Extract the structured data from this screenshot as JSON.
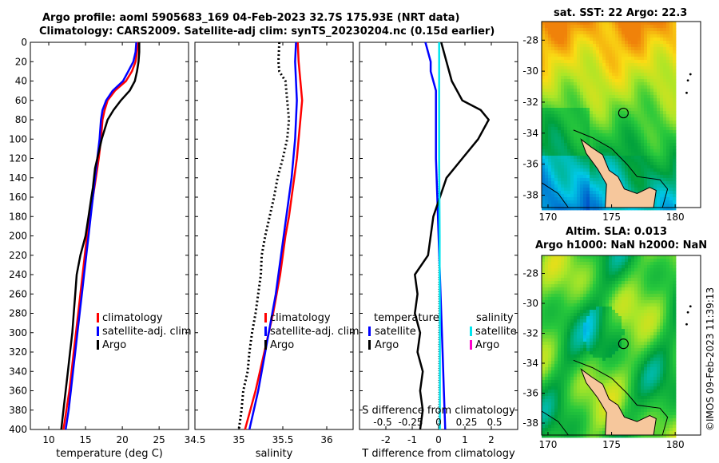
{
  "titles": {
    "line1": "Argo profile: aoml 5905683_169 04-Feb-2023 32.7S 175.93E (NRT data)",
    "line2": "Climatology: CARS2009. Satellite-adj clim: synTS_20230204.nc (0.15d earlier)",
    "map1": "sat. SST: 22 Argo: 22.3",
    "map2a": "Altim. SLA: 0.013",
    "map2b": "Argo h1000: NaN h2000: NaN"
  },
  "stamp": "©IMOS 09-Feb-2023 11:39:13",
  "colors": {
    "climatology": "#ff0000",
    "satellite": "#0000ff",
    "argo": "#000000",
    "sal_satellite": "#00e5ee",
    "sal_argo": "#ff00cc"
  },
  "chart_data": [
    {
      "type": "line",
      "id": "temperature",
      "xlabel": "temperature (deg C)",
      "xlim": [
        7.5,
        29
      ],
      "ylim": [
        0,
        400
      ],
      "yticks": [
        0,
        20,
        40,
        60,
        80,
        100,
        120,
        140,
        160,
        180,
        200,
        220,
        240,
        260,
        280,
        300,
        320,
        340,
        360,
        380,
        400
      ],
      "xticks": [
        10,
        15,
        20,
        25
      ],
      "tick_labels": [
        "10",
        "15",
        "20",
        "25"
      ],
      "legend": {
        "location": "lower-right",
        "labels": [
          "climatology",
          "satellite-adj. clim",
          "Argo"
        ]
      },
      "series": [
        {
          "name": "climatology",
          "color": "#ff0000",
          "points": [
            [
              22.1,
              0
            ],
            [
              22.0,
              10
            ],
            [
              21.8,
              20
            ],
            [
              21.3,
              30
            ],
            [
              20.5,
              40
            ],
            [
              19.0,
              50
            ],
            [
              18.0,
              60
            ],
            [
              17.6,
              70
            ],
            [
              17.3,
              80
            ],
            [
              17.1,
              100
            ],
            [
              16.8,
              120
            ],
            [
              16.4,
              140
            ],
            [
              16.0,
              160
            ],
            [
              15.6,
              180
            ],
            [
              15.2,
              200
            ],
            [
              14.9,
              220
            ],
            [
              14.6,
              240
            ],
            [
              14.3,
              260
            ],
            [
              14.0,
              280
            ],
            [
              13.7,
              300
            ],
            [
              13.4,
              320
            ],
            [
              13.1,
              340
            ],
            [
              12.8,
              360
            ],
            [
              12.4,
              380
            ],
            [
              12.0,
              400
            ]
          ]
        },
        {
          "name": "satellite-adj. clim",
          "color": "#0000ff",
          "points": [
            [
              21.9,
              0
            ],
            [
              21.8,
              10
            ],
            [
              21.5,
              20
            ],
            [
              20.8,
              30
            ],
            [
              20.1,
              40
            ],
            [
              18.7,
              50
            ],
            [
              17.8,
              60
            ],
            [
              17.3,
              70
            ],
            [
              17.1,
              80
            ],
            [
              16.9,
              100
            ],
            [
              16.6,
              120
            ],
            [
              16.3,
              140
            ],
            [
              16.0,
              160
            ],
            [
              15.7,
              180
            ],
            [
              15.4,
              200
            ],
            [
              15.1,
              220
            ],
            [
              14.8,
              240
            ],
            [
              14.5,
              260
            ],
            [
              14.2,
              280
            ],
            [
              13.9,
              300
            ],
            [
              13.6,
              320
            ],
            [
              13.3,
              340
            ],
            [
              13.0,
              360
            ],
            [
              12.7,
              380
            ],
            [
              12.3,
              400
            ]
          ]
        },
        {
          "name": "Argo",
          "color": "#000000",
          "points": [
            [
              22.3,
              0
            ],
            [
              22.3,
              10
            ],
            [
              22.2,
              20
            ],
            [
              22.0,
              30
            ],
            [
              21.7,
              40
            ],
            [
              21.0,
              50
            ],
            [
              19.8,
              60
            ],
            [
              18.8,
              70
            ],
            [
              18.0,
              80
            ],
            [
              17.6,
              90
            ],
            [
              17.2,
              100
            ],
            [
              16.9,
              110
            ],
            [
              16.6,
              120
            ],
            [
              16.3,
              130
            ],
            [
              16.0,
              150
            ],
            [
              15.8,
              160
            ],
            [
              15.4,
              180
            ],
            [
              15.0,
              200
            ],
            [
              14.3,
              220
            ],
            [
              13.8,
              240
            ],
            [
              13.6,
              260
            ],
            [
              13.4,
              280
            ],
            [
              13.2,
              300
            ],
            [
              12.9,
              320
            ],
            [
              12.6,
              340
            ],
            [
              12.3,
              360
            ],
            [
              12.0,
              380
            ],
            [
              11.7,
              400
            ]
          ]
        }
      ]
    },
    {
      "type": "line",
      "id": "salinity",
      "xlabel": "salinity",
      "xlim": [
        34.5,
        36.3
      ],
      "ylim": [
        0,
        400
      ],
      "xticks": [
        34.5,
        35,
        35.5,
        36
      ],
      "tick_labels": [
        "34.5",
        "35",
        "35.5",
        "36"
      ],
      "legend": {
        "location": "lower-right",
        "labels": [
          "climatology",
          "satellite-adj. clim",
          "Argo"
        ]
      },
      "series": [
        {
          "name": "climatology",
          "color": "#ff0000",
          "points": [
            [
              35.67,
              0
            ],
            [
              35.68,
              20
            ],
            [
              35.7,
              40
            ],
            [
              35.72,
              60
            ],
            [
              35.7,
              80
            ],
            [
              35.68,
              100
            ],
            [
              35.66,
              120
            ],
            [
              35.63,
              140
            ],
            [
              35.6,
              160
            ],
            [
              35.57,
              180
            ],
            [
              35.53,
              200
            ],
            [
              35.5,
              220
            ],
            [
              35.47,
              240
            ],
            [
              35.43,
              260
            ],
            [
              35.39,
              280
            ],
            [
              35.34,
              300
            ],
            [
              35.29,
              320
            ],
            [
              35.24,
              340
            ],
            [
              35.19,
              360
            ],
            [
              35.13,
              380
            ],
            [
              35.07,
              400
            ]
          ]
        },
        {
          "name": "satellite-adj. clim",
          "color": "#0000ff",
          "points": [
            [
              35.65,
              0
            ],
            [
              35.64,
              20
            ],
            [
              35.65,
              40
            ],
            [
              35.66,
              60
            ],
            [
              35.65,
              80
            ],
            [
              35.64,
              100
            ],
            [
              35.62,
              120
            ],
            [
              35.6,
              140
            ],
            [
              35.57,
              160
            ],
            [
              35.54,
              180
            ],
            [
              35.51,
              200
            ],
            [
              35.48,
              220
            ],
            [
              35.45,
              240
            ],
            [
              35.42,
              260
            ],
            [
              35.38,
              280
            ],
            [
              35.34,
              300
            ],
            [
              35.3,
              320
            ],
            [
              35.26,
              340
            ],
            [
              35.22,
              360
            ],
            [
              35.17,
              380
            ],
            [
              35.12,
              400
            ]
          ]
        },
        {
          "name": "Argo",
          "color": "#000000",
          "points": [
            [
              35.46,
              0
            ],
            [
              35.45,
              20
            ],
            [
              35.46,
              30
            ],
            [
              35.53,
              40
            ],
            [
              35.55,
              60
            ],
            [
              35.57,
              80
            ],
            [
              35.55,
              100
            ],
            [
              35.5,
              120
            ],
            [
              35.44,
              140
            ],
            [
              35.4,
              160
            ],
            [
              35.35,
              180
            ],
            [
              35.3,
              200
            ],
            [
              35.26,
              220
            ],
            [
              35.25,
              240
            ],
            [
              35.22,
              260
            ],
            [
              35.19,
              280
            ],
            [
              35.15,
              300
            ],
            [
              35.12,
              320
            ],
            [
              35.1,
              340
            ],
            [
              35.05,
              360
            ],
            [
              35.03,
              380
            ],
            [
              35.0,
              400
            ]
          ]
        }
      ]
    },
    {
      "type": "line",
      "id": "difference",
      "xlabel": "T difference from climatology",
      "top_label": "S difference from climatology",
      "xlim": [
        -3,
        3
      ],
      "ylim": [
        0,
        400
      ],
      "xticks": [
        -2,
        -1,
        0,
        1,
        2
      ],
      "tick_labels": [
        "-2",
        "-1",
        "0",
        "1",
        "2"
      ],
      "s_ticks": [
        -0.5,
        -0.25,
        0,
        0.25,
        0.5
      ],
      "s_tick_labels": [
        "-0.5",
        "-0.25",
        "0",
        "0.25",
        "0.5"
      ],
      "legend": {
        "location": "lower-center",
        "temperature_header": "temperature",
        "salinity_header": "salinity",
        "temperature_labels": [
          "satellite",
          "Argo"
        ],
        "salinity_labels": [
          "satellite",
          "Argo"
        ]
      },
      "series": [
        {
          "name": "T satellite",
          "color": "#0000ff",
          "points": [
            [
              -0.5,
              0
            ],
            [
              -0.3,
              20
            ],
            [
              -0.3,
              30
            ],
            [
              -0.2,
              40
            ],
            [
              -0.1,
              50
            ],
            [
              -0.1,
              80
            ],
            [
              -0.1,
              120
            ],
            [
              -0.05,
              160
            ],
            [
              0,
              200
            ],
            [
              0.05,
              240
            ],
            [
              0.1,
              280
            ],
            [
              0.15,
              320
            ],
            [
              0.2,
              360
            ],
            [
              0.25,
              400
            ]
          ]
        },
        {
          "name": "T Argo",
          "color": "#000000",
          "points": [
            [
              0.1,
              0
            ],
            [
              0.3,
              20
            ],
            [
              0.5,
              40
            ],
            [
              0.9,
              60
            ],
            [
              1.6,
              70
            ],
            [
              1.9,
              80
            ],
            [
              1.5,
              100
            ],
            [
              0.9,
              120
            ],
            [
              0.3,
              140
            ],
            [
              -0.2,
              180
            ],
            [
              -0.4,
              220
            ],
            [
              -0.9,
              240
            ],
            [
              -0.8,
              260
            ],
            [
              -0.9,
              280
            ],
            [
              -0.7,
              300
            ],
            [
              -0.8,
              320
            ],
            [
              -0.6,
              340
            ],
            [
              -0.7,
              360
            ],
            [
              -0.6,
              380
            ],
            [
              -0.7,
              400
            ]
          ]
        },
        {
          "name": "S satellite",
          "color": "#00e5ee",
          "points": [
            [
              0.02,
              0
            ],
            [
              0.02,
              40
            ],
            [
              0.02,
              80
            ],
            [
              0.02,
              120
            ],
            [
              0.03,
              160
            ],
            [
              0.04,
              200
            ],
            [
              0.04,
              240
            ],
            [
              0.05,
              280
            ],
            [
              0.05,
              320
            ],
            [
              0.05,
              360
            ],
            [
              0.05,
              400
            ]
          ]
        }
      ]
    },
    {
      "type": "heatmap",
      "id": "sst-map",
      "title": "sat. SST: 22 Argo: 22.3",
      "xlim": [
        169.5,
        182
      ],
      "ylim": [
        -38.8,
        -26.8
      ],
      "xticks": [
        170,
        175,
        180
      ],
      "yticks": [
        -28,
        -30,
        -32,
        -34,
        -36,
        -38
      ],
      "tick_labels_x": [
        "170",
        "175",
        "180"
      ],
      "tick_labels_y": [
        "-28",
        "-30",
        "-32",
        "-34",
        "-36",
        "-38"
      ],
      "data_extent_lon": [
        169.5,
        180.0
      ],
      "argo_location": [
        175.93,
        -32.7
      ]
    },
    {
      "type": "heatmap",
      "id": "sla-map",
      "title": "Altim. SLA: 0.013",
      "xlim": [
        169.5,
        182
      ],
      "ylim": [
        -38.8,
        -26.8
      ],
      "xticks": [
        170,
        175,
        180
      ],
      "yticks": [
        -28,
        -30,
        -32,
        -34,
        -36,
        -38
      ],
      "tick_labels_x": [
        "170",
        "175",
        "180"
      ],
      "tick_labels_y": [
        "-28",
        "-30",
        "-32",
        "-34",
        "-36",
        "-38"
      ],
      "data_extent_lon": [
        169.5,
        180.0
      ],
      "argo_location": [
        175.93,
        -32.7
      ]
    }
  ]
}
